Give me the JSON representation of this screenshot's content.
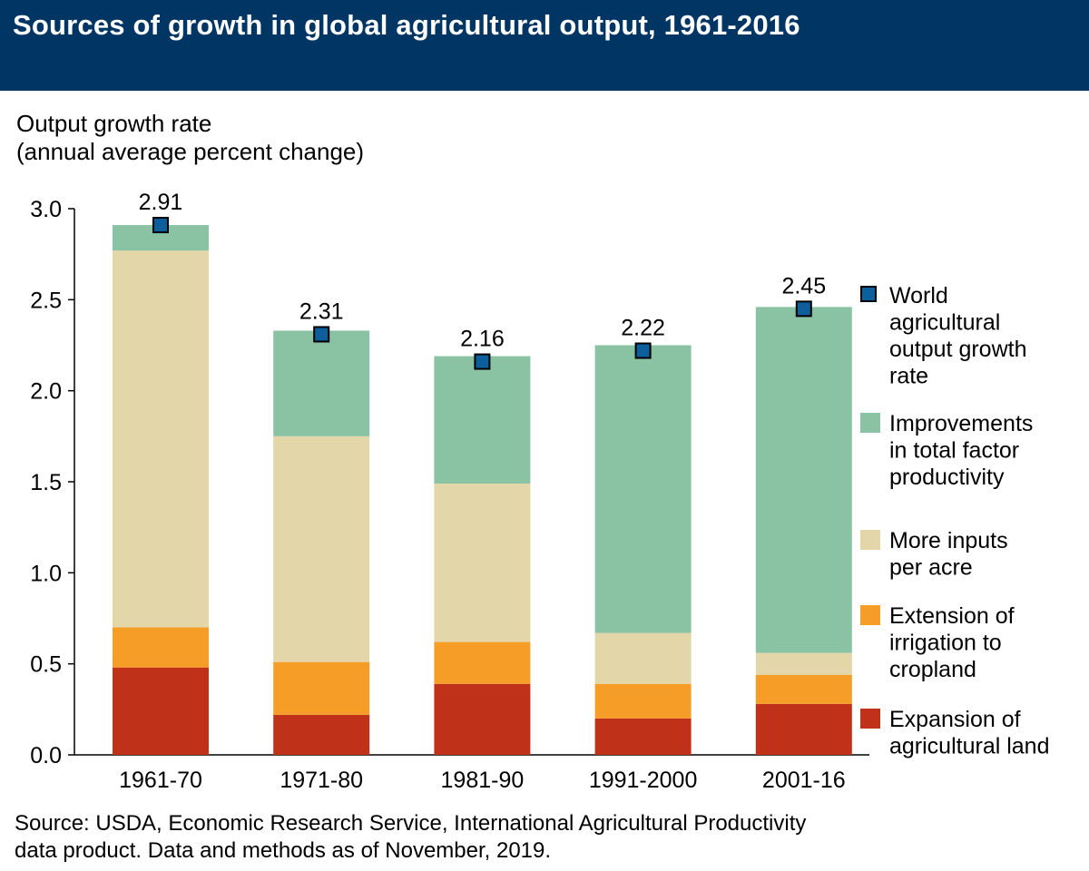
{
  "title": "Sources of growth in global agricultural output, 1961-2016",
  "source_lines": [
    "Source: USDA, Economic Research Service, International Agricultural Productivity",
    "data product. Data and methods as of November, 2019."
  ],
  "chart_data": {
    "type": "bar",
    "stacked": true,
    "title": "Sources of growth in global agricultural output, 1961-2016",
    "ylabel_lines": [
      "Output growth rate",
      "(annual average percent change)"
    ],
    "xlabel": "",
    "categories": [
      "1961-70",
      "1971-80",
      "1981-90",
      "1991-2000",
      "2001-16"
    ],
    "ylim": [
      0,
      3.0
    ],
    "yticks": [
      "0.0",
      "0.5",
      "1.0",
      "1.5",
      "2.0",
      "2.5",
      "3.0"
    ],
    "grid": false,
    "legend_position": "right",
    "series": [
      {
        "name_lines": [
          "Expansion of",
          "agricultural land"
        ],
        "color": "#c0311a",
        "values": [
          0.48,
          0.22,
          0.39,
          0.2,
          0.28
        ]
      },
      {
        "name_lines": [
          "Extension of",
          "irrigation to",
          "cropland"
        ],
        "color": "#f59d26",
        "values": [
          0.22,
          0.29,
          0.23,
          0.19,
          0.16
        ]
      },
      {
        "name_lines": [
          "More inputs",
          "per acre"
        ],
        "color": "#e3d6a9",
        "values": [
          2.07,
          1.24,
          0.87,
          0.28,
          0.12
        ]
      },
      {
        "name_lines": [
          "Improvements",
          "in total factor",
          "productivity"
        ],
        "color": "#8ac2a4",
        "values": [
          0.14,
          0.58,
          0.7,
          1.58,
          1.9
        ]
      }
    ],
    "markers": {
      "name_lines": [
        "World",
        "agricultural",
        "output growth",
        "rate"
      ],
      "color": "#0c5f9a",
      "values": [
        2.91,
        2.31,
        2.16,
        2.22,
        2.45
      ],
      "labels": [
        "2.91",
        "2.31",
        "2.16",
        "2.22",
        "2.45"
      ]
    }
  }
}
